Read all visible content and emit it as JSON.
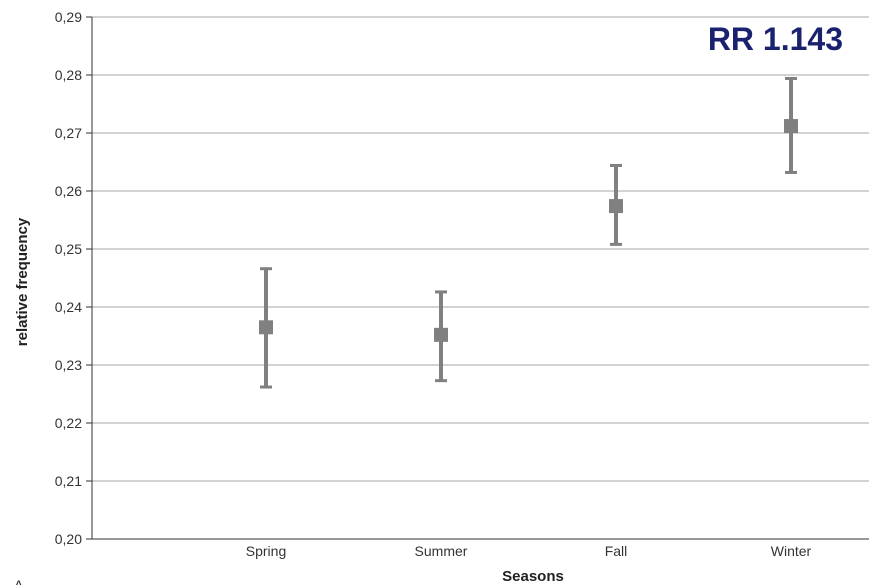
{
  "chart_data": {
    "type": "scatter",
    "title": "",
    "annotation": "RR 1.143",
    "xlabel": "Seasons",
    "ylabel": "relative frequency",
    "categories": [
      "Spring",
      "Summer",
      "Fall",
      "Winter"
    ],
    "ylim": [
      0.2,
      0.29
    ],
    "yticks": [
      "0,20",
      "0,21",
      "0,22",
      "0,23",
      "0,24",
      "0,25",
      "0,26",
      "0,27",
      "0,28",
      "0,29"
    ],
    "series": [
      {
        "values": [
          0.2365,
          0.2352,
          0.2574,
          0.2712
        ],
        "lower": [
          0.2262,
          0.2273,
          0.2508,
          0.2632
        ],
        "upper": [
          0.2466,
          0.2426,
          0.2644,
          0.2794
        ]
      }
    ],
    "grid": true,
    "legend": "none",
    "colors": {
      "marker": "#808080",
      "grid": "#a6a6a6",
      "annotation": "#1a2270",
      "axis": "#333333"
    }
  },
  "panel_label": "A"
}
